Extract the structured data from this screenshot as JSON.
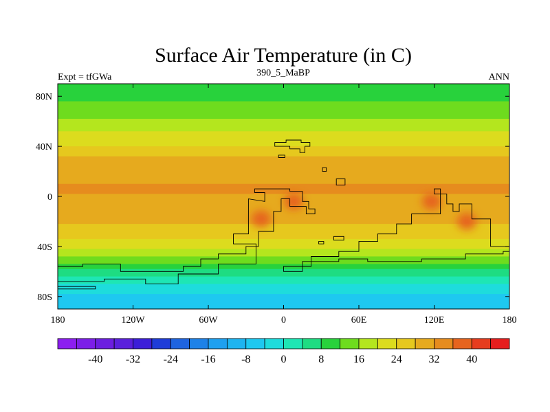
{
  "chart_data": {
    "type": "heatmap",
    "title": "Surface Air Temperature (in C)",
    "left_subtitle": "Expt = tfGWa",
    "center_subtitle": "390_5_MaBP",
    "right_subtitle": "ANN",
    "xlim": [
      -180,
      180
    ],
    "ylim": [
      -90,
      90
    ],
    "x_ticks": [
      {
        "value": -180,
        "label": "180"
      },
      {
        "value": -120,
        "label": "120W"
      },
      {
        "value": -60,
        "label": "60W"
      },
      {
        "value": 0,
        "label": "0"
      },
      {
        "value": 60,
        "label": "60E"
      },
      {
        "value": 120,
        "label": "120E"
      },
      {
        "value": 180,
        "label": "180"
      }
    ],
    "y_ticks": [
      {
        "value": 80,
        "label": "80N"
      },
      {
        "value": 40,
        "label": "40N"
      },
      {
        "value": 0,
        "label": "0"
      },
      {
        "value": -40,
        "label": "40S"
      },
      {
        "value": -80,
        "label": "80S"
      }
    ],
    "zonal_temperature_profile": {
      "lat": [
        90,
        84,
        78,
        70,
        62,
        54,
        46,
        40,
        34,
        26,
        18,
        10,
        2,
        -6,
        -14,
        -22,
        -30,
        -38,
        -46,
        -54,
        -60,
        -66,
        -72,
        -78,
        -84,
        -90
      ],
      "temp": [
        8,
        9,
        11,
        14,
        16,
        19,
        22,
        24,
        27,
        30,
        31,
        32,
        32,
        31,
        30,
        28,
        26,
        22,
        18,
        12,
        6,
        2,
        -2,
        -4,
        -6,
        -8
      ]
    },
    "warm_anomalies": [
      {
        "lon": -18,
        "lat": -18,
        "temp": 36
      },
      {
        "lon": 8,
        "lat": -4,
        "temp": 36
      },
      {
        "lon": 118,
        "lat": -4,
        "temp": 36
      },
      {
        "lon": 146,
        "lat": -20,
        "temp": 37
      }
    ],
    "colorbar": {
      "levels": [
        -44,
        -40,
        -36,
        -32,
        -28,
        -24,
        -20,
        -16,
        -12,
        -8,
        -4,
        0,
        4,
        8,
        12,
        16,
        20,
        24,
        28,
        32,
        36,
        40,
        44
      ],
      "colors": [
        "#8c1ef0",
        "#7c1ee8",
        "#6c1ee0",
        "#5a20dc",
        "#3c1ed8",
        "#1e3cd8",
        "#1e64e0",
        "#1e82e8",
        "#1ea0f0",
        "#1eb4f0",
        "#1ec8f0",
        "#1edcdc",
        "#1ee6b4",
        "#1edc82",
        "#28d23c",
        "#6edc1e",
        "#b4e61e",
        "#dcdc1e",
        "#e6c81e",
        "#e6aa1e",
        "#e68c1e",
        "#e6641e",
        "#e63c1e",
        "#e61e1e"
      ],
      "tick_labels": [
        {
          "value": -40,
          "label": "-40"
        },
        {
          "value": -32,
          "label": "-32"
        },
        {
          "value": -24,
          "label": "-24"
        },
        {
          "value": -16,
          "label": "-16"
        },
        {
          "value": -8,
          "label": "-8"
        },
        {
          "value": 0,
          "label": "0"
        },
        {
          "value": 8,
          "label": "8"
        },
        {
          "value": 16,
          "label": "16"
        },
        {
          "value": 24,
          "label": "24"
        },
        {
          "value": 32,
          "label": "32"
        },
        {
          "value": 40,
          "label": "40"
        }
      ]
    },
    "coastlines": [
      {
        "name": "north-landmass",
        "points": [
          [
            -7,
            40
          ],
          [
            -7,
            43
          ],
          [
            2,
            43
          ],
          [
            2,
            45
          ],
          [
            14,
            45
          ],
          [
            14,
            43
          ],
          [
            21,
            43
          ],
          [
            21,
            40
          ],
          [
            17,
            40
          ],
          [
            17,
            35
          ],
          [
            13,
            35
          ],
          [
            13,
            38
          ],
          [
            5,
            38
          ],
          [
            5,
            40
          ]
        ]
      },
      {
        "name": "north-islet-1",
        "points": [
          [
            -4,
            31
          ],
          [
            -4,
            33
          ],
          [
            1,
            33
          ],
          [
            1,
            31
          ]
        ]
      },
      {
        "name": "north-islet-2",
        "points": [
          [
            31,
            20
          ],
          [
            31,
            23
          ],
          [
            34,
            23
          ],
          [
            34,
            20
          ]
        ]
      },
      {
        "name": "north-islet-3",
        "points": [
          [
            42,
            9
          ],
          [
            42,
            14
          ],
          [
            49,
            14
          ],
          [
            49,
            9
          ]
        ]
      },
      {
        "name": "gondwana-west",
        "points": [
          [
            -23,
            6
          ],
          [
            -23,
            3
          ],
          [
            -15,
            3
          ],
          [
            -15,
            -4
          ],
          [
            -28,
            -2
          ],
          [
            -28,
            -30
          ],
          [
            -40,
            -30
          ],
          [
            -40,
            -38
          ],
          [
            -22,
            -38
          ],
          [
            -22,
            -54
          ],
          [
            -52,
            -54
          ],
          [
            -52,
            -62
          ],
          [
            -84,
            -62
          ],
          [
            -84,
            -70
          ],
          [
            -110,
            -70
          ],
          [
            -110,
            -66
          ],
          [
            -143,
            -66
          ],
          [
            -143,
            -68
          ],
          [
            -180,
            -68
          ],
          [
            -180,
            -56
          ],
          [
            -160,
            -56
          ],
          [
            -160,
            -54
          ],
          [
            -130,
            -54
          ],
          [
            -130,
            -60
          ],
          [
            -80,
            -60
          ],
          [
            -80,
            -56
          ],
          [
            -66,
            -56
          ],
          [
            -66,
            -50
          ],
          [
            -52,
            -50
          ],
          [
            -52,
            -46
          ],
          [
            -30,
            -46
          ],
          [
            -30,
            -40
          ],
          [
            -20,
            -40
          ],
          [
            -20,
            -28
          ],
          [
            -8,
            -28
          ],
          [
            -8,
            -12
          ],
          [
            -2,
            -12
          ],
          [
            -2,
            -2
          ],
          [
            5,
            -2
          ],
          [
            5,
            -8
          ],
          [
            18,
            -8
          ],
          [
            18,
            -14
          ],
          [
            25,
            -14
          ],
          [
            25,
            -10
          ],
          [
            20,
            -10
          ],
          [
            20,
            -4
          ],
          [
            15,
            -4
          ],
          [
            15,
            4
          ],
          [
            5,
            4
          ],
          [
            5,
            6
          ]
        ]
      },
      {
        "name": "gondwana-east",
        "points": [
          [
            120,
            2
          ],
          [
            120,
            6
          ],
          [
            125,
            6
          ],
          [
            125,
            -14
          ],
          [
            102,
            -14
          ],
          [
            102,
            -22
          ],
          [
            90,
            -22
          ],
          [
            90,
            -30
          ],
          [
            75,
            -30
          ],
          [
            75,
            -36
          ],
          [
            60,
            -36
          ],
          [
            60,
            -44
          ],
          [
            44,
            -44
          ],
          [
            44,
            -48
          ],
          [
            22,
            -48
          ],
          [
            22,
            -56
          ],
          [
            0,
            -56
          ],
          [
            0,
            -60
          ],
          [
            15,
            -60
          ],
          [
            15,
            -52
          ],
          [
            44,
            -52
          ],
          [
            44,
            -50
          ],
          [
            67,
            -50
          ],
          [
            67,
            -52
          ],
          [
            110,
            -52
          ],
          [
            110,
            -50
          ],
          [
            145,
            -50
          ],
          [
            145,
            -46
          ],
          [
            175,
            -46
          ],
          [
            175,
            -44
          ],
          [
            180,
            -44
          ],
          [
            180,
            -40
          ],
          [
            165,
            -40
          ],
          [
            165,
            -18
          ],
          [
            150,
            -18
          ],
          [
            150,
            -6
          ],
          [
            140,
            -6
          ],
          [
            140,
            -12
          ],
          [
            135,
            -12
          ],
          [
            135,
            -6
          ],
          [
            130,
            -6
          ],
          [
            130,
            2
          ]
        ]
      },
      {
        "name": "southern-isle",
        "points": [
          [
            -180,
            -72
          ],
          [
            -180,
            -74
          ],
          [
            -150,
            -74
          ],
          [
            -150,
            -72
          ]
        ]
      },
      {
        "name": "mid-islet",
        "points": [
          [
            40,
            -32
          ],
          [
            40,
            -35
          ],
          [
            48,
            -35
          ],
          [
            48,
            -32
          ]
        ]
      },
      {
        "name": "mid-islet-2",
        "points": [
          [
            28,
            -36
          ],
          [
            28,
            -38
          ],
          [
            32,
            -38
          ],
          [
            32,
            -36
          ]
        ]
      }
    ]
  }
}
